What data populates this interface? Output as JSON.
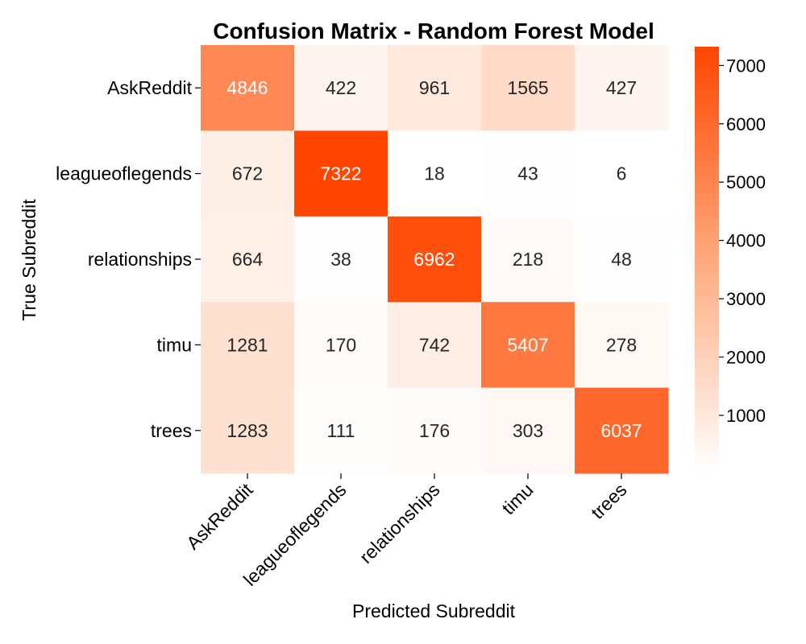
{
  "chart_data": {
    "type": "heatmap",
    "title": "Confusion Matrix - Random Forest Model",
    "xlabel": "Predicted Subreddit",
    "ylabel": "True Subreddit",
    "x_categories": [
      "AskReddit",
      "leagueoflegends",
      "relationships",
      "timu",
      "trees"
    ],
    "y_categories": [
      "AskReddit",
      "leagueoflegends",
      "relationships",
      "timu",
      "trees"
    ],
    "values": [
      [
        4846,
        422,
        961,
        1565,
        427
      ],
      [
        672,
        7322,
        18,
        43,
        6
      ],
      [
        664,
        38,
        6962,
        218,
        48
      ],
      [
        1281,
        170,
        742,
        5407,
        278
      ],
      [
        1283,
        111,
        176,
        303,
        6037
      ]
    ],
    "colorbar": {
      "min": 6,
      "max": 7322,
      "ticks": [
        1000,
        2000,
        3000,
        4000,
        5000,
        6000,
        7000
      ],
      "color_low": "#fff5eb",
      "color_high": "#ff4500"
    },
    "grid": false,
    "legend": "colorbar-right"
  }
}
